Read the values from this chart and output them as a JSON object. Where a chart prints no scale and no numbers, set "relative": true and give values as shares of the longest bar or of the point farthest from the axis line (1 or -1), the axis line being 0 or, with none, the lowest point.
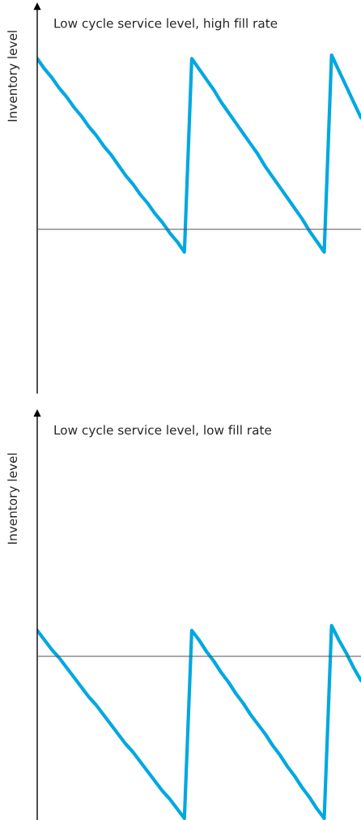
{
  "chart_data": [
    {
      "type": "line",
      "title": "Low cycle service level, high fill rate",
      "ylabel": "Inventory level",
      "relative": true,
      "categories": [
        null,
        null,
        null,
        null,
        null,
        null,
        null,
        null,
        null,
        null,
        null,
        null,
        null,
        null,
        null,
        null,
        null,
        null,
        null,
        null,
        null,
        null,
        null,
        null,
        null,
        null,
        null,
        null,
        null,
        null,
        null,
        null,
        null,
        null,
        null,
        null,
        null,
        null,
        null,
        null,
        null,
        null,
        null,
        null,
        null
      ],
      "series": [
        {
          "color": "#00a8e0",
          "values": [
            0.98,
            0.92,
            0.87,
            0.81,
            0.76,
            0.7,
            0.65,
            0.59,
            0.54,
            0.48,
            0.43,
            0.37,
            0.31,
            0.26,
            0.2,
            0.15,
            0.09,
            0.04,
            -0.02,
            -0.07,
            -0.13,
            0.98,
            0.92,
            0.86,
            0.8,
            0.73,
            0.67,
            0.61,
            0.55,
            0.49,
            0.43,
            0.36,
            0.3,
            0.24,
            0.18,
            0.12,
            0.06,
            -0.01,
            -0.07,
            -0.13,
            1,
            0.91,
            0.82,
            0.73,
            0.64
          ]
        }
      ]
    },
    {
      "type": "line",
      "title": "Low cycle service level, low fill rate",
      "ylabel": "Inventory level",
      "relative": true,
      "categories": [
        null,
        null,
        null,
        null,
        null,
        null,
        null,
        null,
        null,
        null,
        null,
        null,
        null,
        null,
        null,
        null,
        null,
        null,
        null,
        null,
        null,
        null,
        null,
        null,
        null,
        null,
        null,
        null,
        null,
        null,
        null,
        null,
        null,
        null,
        null,
        null,
        null,
        null,
        null,
        null,
        null,
        null,
        null,
        null,
        null
      ],
      "series": [
        {
          "color": "#00a8e0",
          "values": [
            0.16,
            0.1,
            0.04,
            -0.01,
            -0.07,
            -0.13,
            -0.19,
            -0.25,
            -0.3,
            -0.36,
            -0.42,
            -0.48,
            -0.54,
            -0.59,
            -0.65,
            -0.71,
            -0.77,
            -0.83,
            -0.88,
            -0.94,
            -1,
            0.16,
            0.1,
            0.03,
            -0.03,
            -0.1,
            -0.16,
            -0.23,
            -0.29,
            -0.36,
            -0.42,
            -0.48,
            -0.55,
            -0.61,
            -0.68,
            -0.74,
            -0.81,
            -0.87,
            -0.94,
            -1,
            0.19,
            0.1,
            0.02,
            -0.07,
            -0.15
          ]
        }
      ]
    }
  ]
}
